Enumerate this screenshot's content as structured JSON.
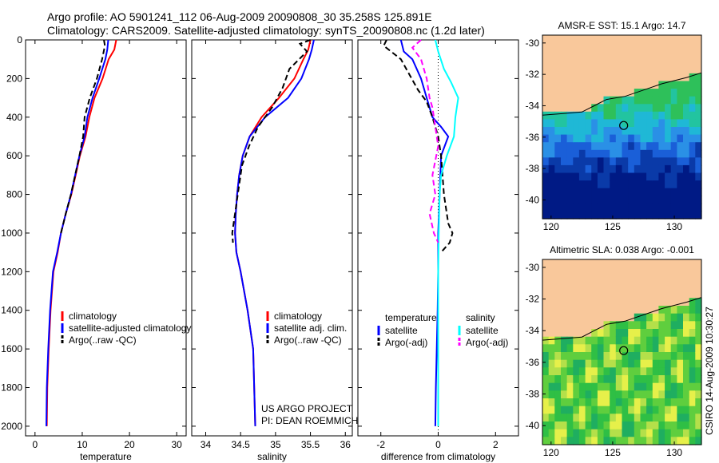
{
  "header": {
    "title_line1": "Argo profile: AO 5901241_112 06-Aug-2009 20090808_30 35.258S 125.891E",
    "title_line2": "Climatology: CARS2009. Satellite-adjusted climatology: synTS_20090808.nc (1.2d later)"
  },
  "side_label": "CSIRO 14-Aug-2009 10:30:27",
  "colors": {
    "climatology": "#ff0000",
    "satellite": "#0000ff",
    "argo": "#000000",
    "salinity_satellite": "#00ffff",
    "salinity_argo": "#ff00ff",
    "land": "#f9c89b"
  },
  "chart_data": [
    {
      "id": "temperature",
      "type": "line",
      "xlabel": "temperature",
      "xlim": [
        -2,
        32
      ],
      "ylim": [
        0,
        2050
      ],
      "y_inverted": true,
      "xticks": [
        0,
        10,
        20,
        30
      ],
      "yticks": [
        0,
        200,
        400,
        600,
        800,
        1000,
        1200,
        1400,
        1600,
        1800,
        2000
      ],
      "series": [
        {
          "name": "climatology",
          "color": "#ff0000",
          "dash": "solid",
          "x": [
            17.2,
            16.8,
            15.6,
            14.3,
            12.6,
            11.5,
            10.7,
            9.5,
            8.6,
            7.7,
            6.5,
            5.5,
            4.8,
            3.9,
            3.3,
            2.9,
            2.6,
            2.5
          ],
          "y": [
            0,
            50,
            100,
            200,
            300,
            400,
            500,
            600,
            700,
            800,
            900,
            1000,
            1100,
            1200,
            1400,
            1600,
            1800,
            2000
          ]
        },
        {
          "name": "satellite-adjusted climatology",
          "color": "#0000ff",
          "dash": "solid",
          "x": [
            15.5,
            15.3,
            14.9,
            13.6,
            12.2,
            11.1,
            10.5,
            9.4,
            8.5,
            7.6,
            6.5,
            5.5,
            4.7,
            3.8,
            3.2,
            2.8,
            2.5,
            2.4
          ],
          "y": [
            0,
            50,
            100,
            200,
            300,
            400,
            500,
            600,
            700,
            800,
            900,
            1000,
            1100,
            1200,
            1400,
            1600,
            1800,
            2000
          ]
        },
        {
          "name": "Argo(..raw -QC)",
          "color": "#000000",
          "dash": "dashed",
          "x": [
            14.6,
            14.8,
            14.2,
            13.1,
            11.6,
            10.5,
            10.2,
            9.4,
            8.5,
            7.6,
            6.5,
            5.5
          ],
          "y": [
            0,
            30,
            100,
            200,
            300,
            400,
            500,
            600,
            700,
            800,
            900,
            1000
          ]
        }
      ],
      "legend": [
        "climatology",
        "satellite-adjusted climatology",
        "Argo(..raw -QC)"
      ]
    },
    {
      "id": "salinity",
      "type": "line",
      "xlabel": "salinity",
      "xlim": [
        33.8,
        36.1
      ],
      "ylim": [
        0,
        2050
      ],
      "y_inverted": true,
      "xticks": [
        34,
        34.5,
        35,
        35.5,
        36
      ],
      "series": [
        {
          "name": "climatology",
          "color": "#ff0000",
          "dash": "solid",
          "x": [
            35.5,
            35.47,
            35.4,
            35.27,
            35.05,
            34.8,
            34.63,
            34.53,
            34.48,
            34.45,
            34.43,
            34.42,
            34.44,
            34.5,
            34.6,
            34.68,
            34.71
          ],
          "y": [
            0,
            50,
            100,
            200,
            300,
            400,
            500,
            600,
            700,
            800,
            900,
            1000,
            1100,
            1200,
            1400,
            1600,
            2000
          ]
        },
        {
          "name": "satellite adj. clim.",
          "color": "#0000ff",
          "dash": "solid",
          "x": [
            35.55,
            35.52,
            35.48,
            35.37,
            35.18,
            34.85,
            34.63,
            34.53,
            34.48,
            34.45,
            34.43,
            34.42,
            34.44,
            34.5,
            34.6,
            34.68,
            34.71
          ],
          "y": [
            0,
            50,
            100,
            200,
            300,
            400,
            500,
            600,
            700,
            800,
            900,
            1000,
            1100,
            1200,
            1400,
            1600,
            2000
          ]
        },
        {
          "name": "Argo(..raw -QC)",
          "color": "#000000",
          "dash": "dashed",
          "x": [
            35.5,
            35.35,
            35.45,
            35.2,
            35.1,
            34.95,
            34.75,
            34.62,
            34.52,
            34.48,
            34.44,
            34.4,
            34.38,
            34.39
          ],
          "y": [
            0,
            20,
            60,
            150,
            250,
            350,
            450,
            550,
            650,
            750,
            850,
            950,
            1000,
            1050
          ]
        }
      ],
      "legend": [
        "climatology",
        "satellite adj. clim.",
        "Argo(..raw -QC)"
      ],
      "annotation": [
        "US ARGO PROJECT",
        "PI: DEAN ROEMMICH"
      ]
    },
    {
      "id": "difference",
      "type": "line",
      "xlabel": "difference from climatology",
      "xlim": [
        -2.8,
        2.8
      ],
      "ylim": [
        0,
        2050
      ],
      "y_inverted": true,
      "xticks": [
        -2,
        0,
        2
      ],
      "zero_line": true,
      "series": [
        {
          "name": "temperature satellite",
          "color": "#0000ff",
          "dash": "solid",
          "x": [
            -1.3,
            -1.2,
            -0.9,
            -0.6,
            -0.4,
            -0.2,
            0.1,
            0.35,
            0.1,
            0.05,
            0.0,
            0.0,
            -0.02,
            -0.05,
            -0.08,
            -0.1
          ],
          "y": [
            0,
            60,
            100,
            200,
            300,
            400,
            450,
            500,
            600,
            800,
            1000,
            1200,
            1400,
            1600,
            1800,
            2000
          ]
        },
        {
          "name": "temperature Argo(-adj)",
          "color": "#000000",
          "dash": "dashed",
          "x": [
            -1.8,
            -1.9,
            -1.3,
            -1.0,
            -0.7,
            -0.4,
            -0.2,
            0.0,
            0.1,
            0.2,
            0.3,
            0.35,
            0.5,
            0.4,
            0.1
          ],
          "y": [
            0,
            30,
            100,
            180,
            260,
            320,
            400,
            500,
            600,
            800,
            900,
            950,
            1000,
            1050,
            1100
          ]
        },
        {
          "name": "salinity satellite",
          "color": "#00ffff",
          "dash": "solid",
          "x": [
            -0.1,
            0.0,
            0.2,
            0.45,
            0.7,
            0.6,
            0.55,
            0.3,
            0.1,
            0.05,
            0.02,
            0.0,
            0.0,
            0.0,
            0.0,
            0.0
          ],
          "y": [
            0,
            60,
            150,
            220,
            300,
            400,
            500,
            600,
            700,
            800,
            1000,
            1200,
            1400,
            1600,
            1800,
            2000
          ]
        },
        {
          "name": "salinity Argo(-adj)",
          "color": "#ff00ff",
          "dash": "dashed",
          "x": [
            -0.6,
            -0.9,
            -0.6,
            -0.4,
            -0.3,
            -0.2,
            -0.1,
            0.0,
            -0.2,
            -0.1,
            -0.3,
            -0.15,
            0.0
          ],
          "y": [
            0,
            40,
            100,
            200,
            300,
            350,
            450,
            550,
            700,
            800,
            900,
            1000,
            1050
          ]
        }
      ],
      "legend_headers": [
        "temperature",
        "salinity"
      ],
      "legend_left": [
        "satellite",
        "Argo(-adj)"
      ],
      "legend_right": [
        "satellite",
        "Argo(-adj)"
      ]
    },
    {
      "id": "sst_map",
      "type": "heatmap",
      "title": "AMSR-E SST: 15.1 Argo: 14.7",
      "xlim": [
        119.3,
        132.2
      ],
      "ylim": [
        -41.2,
        -29.5
      ],
      "xticks": [
        120,
        125,
        130
      ],
      "yticks": [
        -30,
        -32,
        -34,
        -36,
        -38,
        -40
      ],
      "float_position": [
        125.891,
        -35.258
      ],
      "coast_lat": [
        -34.6,
        -34.5,
        -34.4,
        -34.0,
        -33.8,
        -33.6,
        -33.4,
        -33.0,
        -32.6,
        -32.2,
        -31.9
      ],
      "coast_lon": [
        119.3,
        121.0,
        122.5,
        123.5,
        124.0,
        124.5,
        126.0,
        127.5,
        129.0,
        131.0,
        132.2
      ]
    },
    {
      "id": "sla_map",
      "type": "heatmap",
      "title": "Altimetric SLA: 0.038 Argo: -0.001",
      "xlim": [
        119.3,
        132.2
      ],
      "ylim": [
        -41.2,
        -29.5
      ],
      "xticks": [
        120,
        125,
        130
      ],
      "yticks": [
        -30,
        -32,
        -34,
        -36,
        -38,
        -40
      ],
      "float_position": [
        125.891,
        -35.258
      ],
      "coast_lat": [
        -34.6,
        -34.5,
        -34.4,
        -34.0,
        -33.8,
        -33.6,
        -33.4,
        -33.0,
        -32.6,
        -32.2,
        -31.9
      ],
      "coast_lon": [
        119.3,
        121.0,
        122.5,
        123.5,
        124.0,
        124.5,
        126.0,
        127.5,
        129.0,
        131.0,
        132.2
      ]
    }
  ]
}
